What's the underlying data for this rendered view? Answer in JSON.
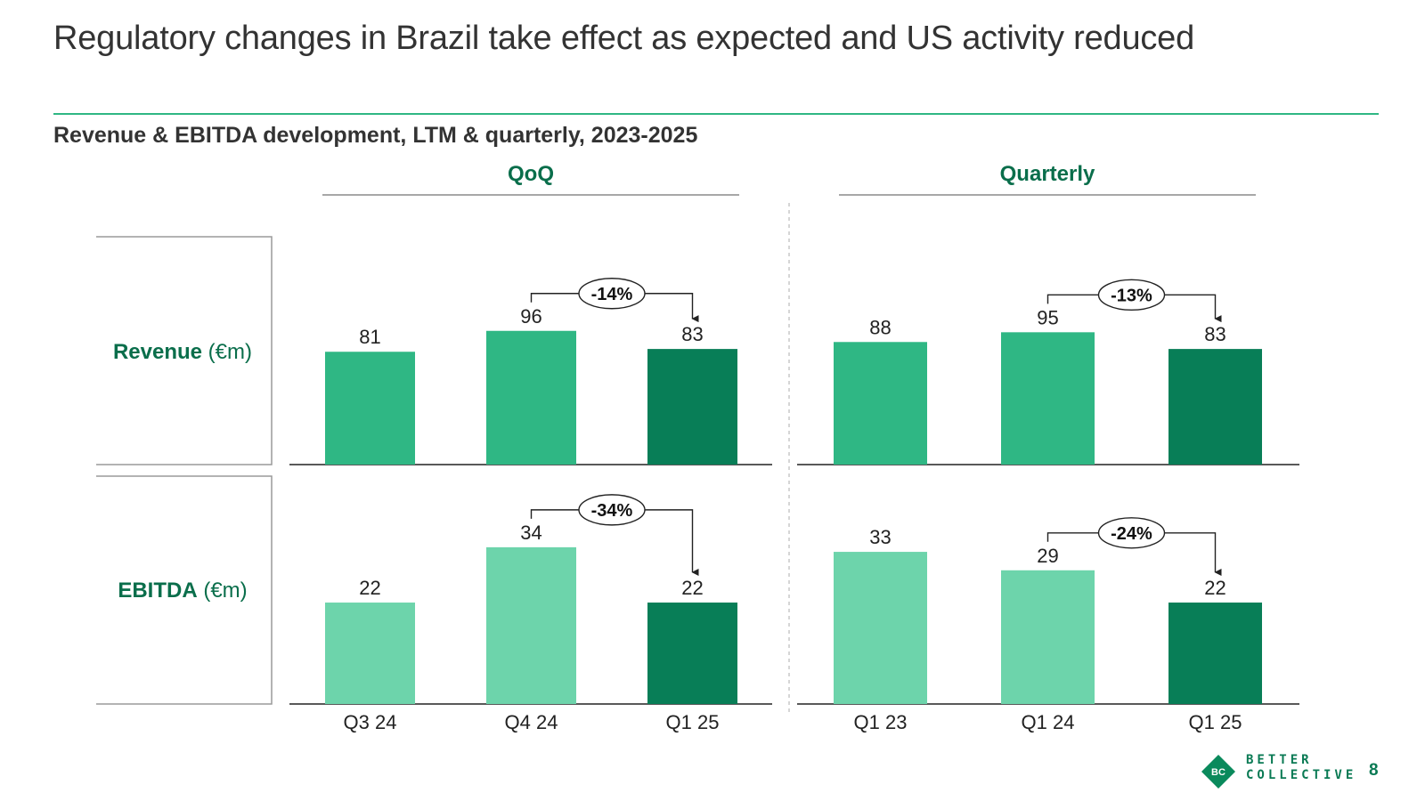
{
  "slide": {
    "title": "Regulatory changes in Brazil take effect as expected and US activity reduced",
    "subtitle": "Revenue & EBITDA development, LTM & quarterly, 2023-2025",
    "page_number": "8"
  },
  "logo": {
    "mark_text": "BC",
    "line1": "BETTER",
    "line2": "COLLECTIVE"
  },
  "colors": {
    "revenue_bar": "#2fb784",
    "ebitda_bar": "#6dd4ab",
    "highlight_bar": "#087e57",
    "accent_text": "#0a6e4b",
    "axis": "#222222",
    "frame": "#9a9a9a"
  },
  "rows": [
    {
      "metric": "Revenue",
      "unit": "(€m)"
    },
    {
      "metric": "EBITDA",
      "unit": "(€m)"
    }
  ],
  "chart_data": [
    {
      "type": "bar",
      "panel": "QoQ",
      "title": "QoQ",
      "categories": [
        "Q3 24",
        "Q4 24",
        "Q1 25"
      ],
      "series": [
        {
          "name": "Revenue (€m)",
          "values": [
            81,
            96,
            83
          ]
        },
        {
          "name": "EBITDA (€m)",
          "values": [
            22,
            34,
            22
          ]
        }
      ],
      "highlight_category": "Q1 25",
      "annotations": [
        {
          "series": "Revenue (€m)",
          "from": "Q4 24",
          "to": "Q1 25",
          "label": "-14%"
        },
        {
          "series": "EBITDA (€m)",
          "from": "Q4 24",
          "to": "Q1 25",
          "label": "-34%"
        }
      ]
    },
    {
      "type": "bar",
      "panel": "Quarterly",
      "title": "Quarterly",
      "categories": [
        "Q1 23",
        "Q1 24",
        "Q1 25"
      ],
      "series": [
        {
          "name": "Revenue (€m)",
          "values": [
            88,
            95,
            83
          ]
        },
        {
          "name": "EBITDA (€m)",
          "values": [
            33,
            29,
            22
          ]
        }
      ],
      "highlight_category": "Q1 25",
      "annotations": [
        {
          "series": "Revenue (€m)",
          "from": "Q1 24",
          "to": "Q1 25",
          "label": "-13%"
        },
        {
          "series": "EBITDA (€m)",
          "from": "Q1 24",
          "to": "Q1 25",
          "label": "-24%"
        }
      ]
    }
  ]
}
